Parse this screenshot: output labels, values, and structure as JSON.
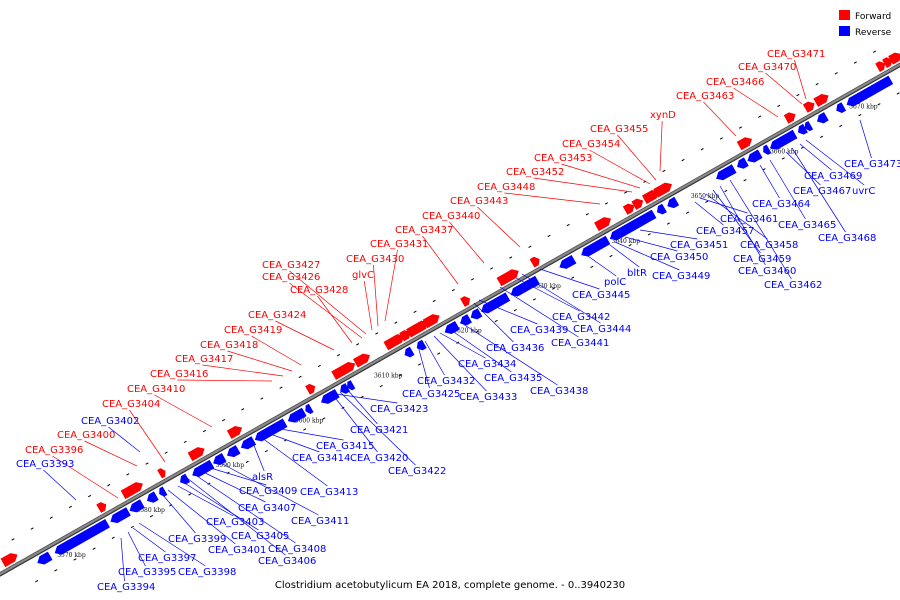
{
  "title": "Clostridium acetobutylicum EA 2018, complete genome. - 0..3940230",
  "legend": [
    {
      "label": "Forward",
      "color": "#ff0000"
    },
    {
      "label": "Reverse",
      "color": "#0000ff"
    }
  ],
  "colors": {
    "forward": "#ff0000",
    "reverse": "#0000ff",
    "axis": "#8a8a8a"
  },
  "ticks": [
    "3570 kbp",
    "3580 kbp",
    "3590 kbp",
    "3600 kbp",
    "3610 kbp",
    "3620 kbp",
    "3630 kbp",
    "3640 kbp",
    "3650 kbp",
    "3660 kbp",
    "3670 kbp"
  ],
  "forward_labels": [
    "CEA_G3396",
    "CEA_G3400",
    "CEA_G3404",
    "CEA_G3410",
    "CEA_G3416",
    "CEA_G3417",
    "CEA_G3418",
    "CEA_G3419",
    "CEA_G3424",
    "CEA_G3428",
    "CEA_G3426",
    "CEA_G3427",
    "glvC",
    "CEA_G3430",
    "CEA_G3431",
    "CEA_G3437",
    "CEA_G3440",
    "CEA_G3443",
    "CEA_G3448",
    "CEA_G3452",
    "CEA_G3453",
    "CEA_G3454",
    "CEA_G3455",
    "xynD",
    "CEA_G3463",
    "CEA_G3466",
    "CEA_G3470",
    "CEA_G3471"
  ],
  "reverse_labels": [
    "CEA_G3393",
    "CEA_G3402",
    "CEA_G3394",
    "CEA_G3395",
    "CEA_G3397",
    "CEA_G3398",
    "CEA_G3399",
    "CEA_G3401",
    "CEA_G3403",
    "CEA_G3405",
    "CEA_G3406",
    "CEA_G3408",
    "CEA_G3407",
    "CEA_G3409",
    "alsR",
    "CEA_G3411",
    "CEA_G3413",
    "CEA_G3414",
    "CEA_G3415",
    "CEA_G3420",
    "CEA_G3422",
    "CEA_G3421",
    "CEA_G3423",
    "CEA_G3425",
    "CEA_G3432",
    "CEA_G3433",
    "CEA_G3434",
    "CEA_G3435",
    "CEA_G3436",
    "CEA_G3438",
    "CEA_G3439",
    "CEA_G3441",
    "CEA_G3442",
    "CEA_G3444",
    "CEA_G3445",
    "polC",
    "bltR",
    "CEA_G3449",
    "CEA_G3450",
    "CEA_G3451",
    "CEA_G3457",
    "CEA_G3461",
    "CEA_G3458",
    "CEA_G3459",
    "CEA_G3460",
    "CEA_G3462",
    "CEA_G3464",
    "CEA_G3465",
    "CEA_G3467",
    "CEA_G3468",
    "CEA_G3469",
    "uvrC",
    "CEA_G3473"
  ]
}
